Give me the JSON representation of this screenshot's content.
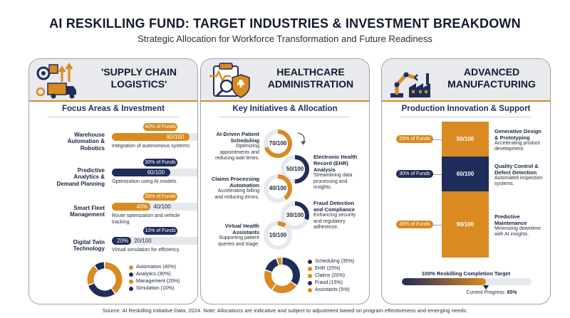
{
  "header": {
    "title": "AI RESKILLING FUND: TARGET INDUSTRIES & INVESTMENT BREAKDOWN",
    "subtitle": "Strategic Allocation for Workforce Transformation and Future Readiness"
  },
  "colors": {
    "navy": "#1f2d5a",
    "orange": "#d98a21",
    "track": "#e6e8ee",
    "header_bg": "#e8eaee"
  },
  "panel1": {
    "title_line1": "'SUPPLY CHAIN",
    "title_line2": "LOGISTICS'",
    "section": "Focus Areas & Investment",
    "rows": [
      {
        "label_lines": [
          "Warehouse",
          "Automation &",
          "Robotics"
        ],
        "pct": "40% of Funds",
        "value": "80/100",
        "score": 80,
        "color": "orange",
        "desc": "Integration of autonomous systems."
      },
      {
        "label_lines": [
          "Predictive",
          "Analytics &",
          "Demand Planning"
        ],
        "pct": "30% of Funds",
        "value": "60/100",
        "score": 60,
        "color": "navy",
        "desc": "Optimization using AI models."
      },
      {
        "label_lines": [
          "Smart Fleet",
          "Management"
        ],
        "pct": "20% of Funds",
        "value": "40/100",
        "inner": "40%",
        "score": 40,
        "color": "orange",
        "desc": "Route optimization and vehicle tracking."
      },
      {
        "label_lines": [
          "Digital Twin",
          "Technology"
        ],
        "pct": "10% of Funds",
        "value": "20/100",
        "inner": "20%",
        "score": 20,
        "color": "navy",
        "desc": "Virtual simulation for efficiency."
      }
    ],
    "donut_legend": [
      {
        "label": "Automation (40%)",
        "value": 40,
        "color": "#d98a21"
      },
      {
        "label": "Analytics (30%)",
        "value": 30,
        "color": "#1f2d5a"
      },
      {
        "label": "Management (20%)",
        "value": 20,
        "color": "#d98a21"
      },
      {
        "label": "Simulation (10%)",
        "value": 10,
        "color": "#1f2d5a"
      }
    ]
  },
  "panel2": {
    "title_line1": "HEALTHCARE",
    "title_line2": "ADMINISTRATION",
    "section": "Key Initiatives & Allocation",
    "items": [
      {
        "title_lines": [
          "AI-Driven Patient",
          "Scheduling"
        ],
        "desc_lines": [
          "Optimizing",
          "appointments and",
          "reducing wait times."
        ],
        "value": "70/100",
        "score": 70,
        "side": "left",
        "color": "#d98a21"
      },
      {
        "title_lines": [
          "Electronic Health",
          "Record (EHR)",
          "Analysis"
        ],
        "desc_lines": [
          "Streamlining data",
          "processing and",
          "insights."
        ],
        "value": "50/100",
        "score": 50,
        "side": "right",
        "color": "#1f2d5a"
      },
      {
        "title_lines": [
          "Claims Processing",
          "Automation"
        ],
        "desc_lines": [
          "Accelerating billing",
          "and reducing errors."
        ],
        "value": "40/100",
        "score": 40,
        "side": "left",
        "color": "#d98a21"
      },
      {
        "title_lines": [
          "Fraud Detection",
          "and Compliance"
        ],
        "desc_lines": [
          "Enhancing security",
          "and regulatory",
          "adherence."
        ],
        "value": "30/100",
        "score": 30,
        "side": "right",
        "color": "#1f2d5a"
      },
      {
        "title_lines": [
          "Virtual Health",
          "Assistants"
        ],
        "desc_lines": [
          "Supporting patient",
          "queries and triage."
        ],
        "value": "10/100",
        "score": 10,
        "side": "left",
        "color": "#d98a21"
      }
    ],
    "donut_legend": [
      {
        "label": "Scheduling (35%)",
        "value": 35,
        "color": "#1f2d5a"
      },
      {
        "label": "EHR (25%)",
        "value": 25,
        "color": "#d98a21"
      },
      {
        "label": "Claims (20%)",
        "value": 20,
        "color": "#d98a21"
      },
      {
        "label": "Fraud (15%)",
        "value": 15,
        "color": "#1f2d5a"
      },
      {
        "label": "Assistants (5%)",
        "value": 5,
        "color": "#d98a21"
      }
    ]
  },
  "panel3": {
    "title_line1": "ADVANCED",
    "title_line2": "MANUFACTURING",
    "section": "Production Innovation & Support",
    "segments": [
      {
        "pct": "25% of Funds",
        "value": "50/100",
        "color": "#d98a21",
        "title_lines": [
          "Generative Design",
          "& Prototyping"
        ],
        "desc_lines": [
          "Accelerating product",
          "development."
        ]
      },
      {
        "pct": "30% of Funds",
        "value": "60/100",
        "color": "#1f2d5a",
        "title_lines": [
          "Quality Control &",
          "Defect Detection"
        ],
        "desc_lines": [
          "Automated inspection",
          "systems."
        ]
      },
      {
        "pct": "45% of Funds",
        "value": "90/100",
        "color": "#d98a21",
        "title_lines": [
          "Predictive",
          "Maintenance"
        ],
        "desc_lines": [
          "Minimizing downtime",
          "with AI insights."
        ]
      }
    ],
    "target_label": "100% Reskilling Completion Target",
    "progress_label": "Current Progress:",
    "progress_value": "65%",
    "progress": 0.65
  },
  "footer": "Source: AI Reskilling Initiative Data, 2024. Note: Allocations are indicative and subject to adjustment based on program effectiveness and emerging needs."
}
